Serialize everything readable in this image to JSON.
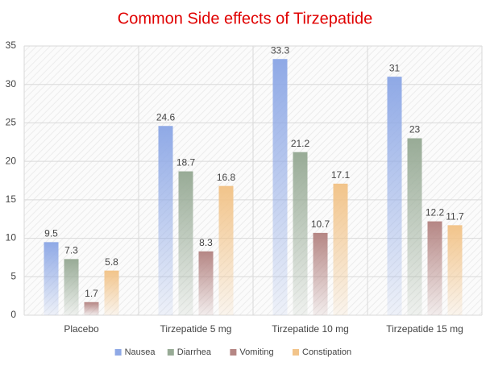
{
  "chart_data": {
    "type": "bar",
    "title": "Common Side effects of Tirzepatide",
    "categories": [
      "Placebo",
      "Tirzepatide 5 mg",
      "Tirzepatide 10 mg",
      "Tirzepatide 15 mg"
    ],
    "series": [
      {
        "name": "Nausea",
        "color": "#8fa9e6",
        "values": [
          9.5,
          24.6,
          33.3,
          31
        ]
      },
      {
        "name": "Diarrhea",
        "color": "#98ab96",
        "values": [
          7.3,
          18.7,
          21.2,
          23
        ]
      },
      {
        "name": "Vomiting",
        "color": "#b58684",
        "values": [
          1.7,
          8.3,
          10.7,
          12.2
        ]
      },
      {
        "name": "Constipation",
        "color": "#f2c48a",
        "values": [
          5.8,
          16.8,
          17.1,
          11.7
        ]
      }
    ],
    "ylim": [
      0,
      35
    ],
    "yticks": [
      0,
      5,
      10,
      15,
      20,
      25,
      30,
      35
    ],
    "grid": true,
    "legend": "bottom"
  }
}
